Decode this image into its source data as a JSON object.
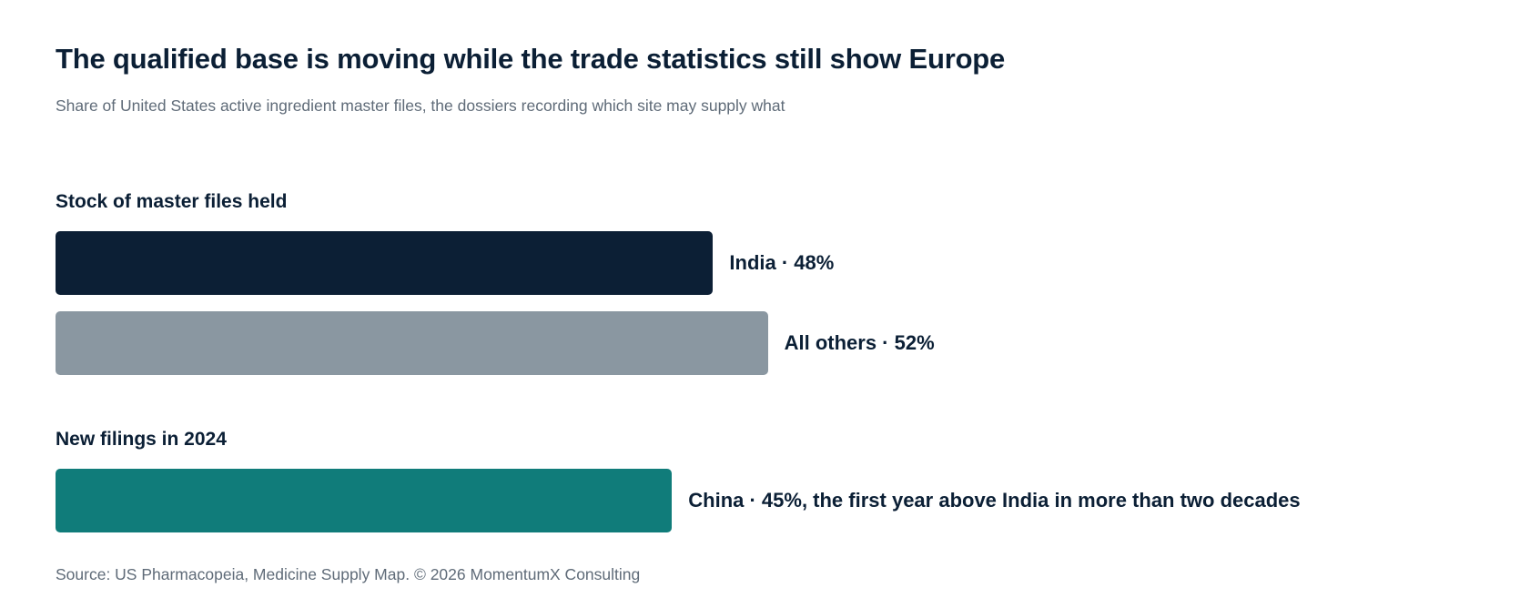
{
  "title": "The qualified base is moving while the trade statistics still show Europe",
  "subtitle": "Share of United States active ingredient master files, the dossiers recording which site may supply what",
  "source": "Source: US Pharmacopeia, Medicine Supply Map. © 2026 MomentumX Consulting",
  "colors": {
    "india": "#0c1f35",
    "others": "#8a97a1",
    "china": "#107c7a"
  },
  "chart_data": {
    "type": "bar",
    "orientation": "horizontal",
    "unit": "%",
    "groups": [
      {
        "label": "Stock of master files held",
        "bars": [
          {
            "name": "India",
            "value": 48,
            "label": "India · 48%",
            "color_key": "india"
          },
          {
            "name": "All others",
            "value": 52,
            "label": "All others · 52%",
            "color_key": "others"
          }
        ]
      },
      {
        "label": "New filings in 2024",
        "bars": [
          {
            "name": "China",
            "value": 45,
            "label": "China · 45%, the first year above India in more than two decades",
            "color_key": "china"
          }
        ]
      }
    ]
  }
}
